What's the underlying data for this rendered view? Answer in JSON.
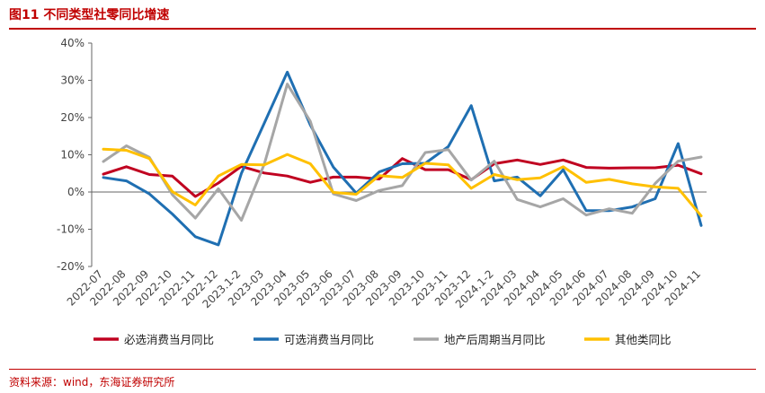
{
  "header": {
    "title": "图11  不同类型社零同比增速"
  },
  "footer": {
    "source": "资料来源：wind，东海证券研究所"
  },
  "chart_data": {
    "type": "line",
    "categories": [
      "2022-07",
      "2022-08",
      "2022-09",
      "2022-10",
      "2022-11",
      "2022-12",
      "2023.1-2",
      "2023-03",
      "2023-04",
      "2023-05",
      "2023-06",
      "2023-07",
      "2023-08",
      "2023-09",
      "2023-10",
      "2023-11",
      "2023-12",
      "2024.1-2",
      "2024-03",
      "2024-04",
      "2024-05",
      "2024-06",
      "2024-07",
      "2024-08",
      "2024-09",
      "2024-10",
      "2024-11"
    ],
    "yticks": [
      "40%",
      "30%",
      "20%",
      "10%",
      "0%",
      "-10%",
      "-20%"
    ],
    "ylim": [
      -20,
      40
    ],
    "grid": false,
    "legend_position": "bottom",
    "series": [
      {
        "name": "必选消费当月同比",
        "color": "#c00020",
        "values": [
          4.8,
          6.8,
          4.7,
          4.3,
          -1.2,
          2.4,
          6.9,
          5.1,
          4.3,
          2.6,
          4.0,
          4.0,
          3.5,
          9.0,
          6.0,
          6.0,
          3.3,
          7.6,
          8.6,
          7.4,
          8.6,
          6.6,
          6.4,
          6.5,
          6.5,
          7.2,
          4.9
        ]
      },
      {
        "name": "可选消费当月同比",
        "color": "#1f6fb2",
        "values": [
          3.9,
          3.0,
          -0.5,
          -5.9,
          -12.0,
          -14.2,
          5.0,
          18.5,
          32.2,
          18.0,
          6.7,
          -0.3,
          5.4,
          7.6,
          7.7,
          12.2,
          23.2,
          3.0,
          4.0,
          -1.0,
          6.0,
          -5.0,
          -5.0,
          -4.0,
          -1.8,
          13.0,
          -9.0
        ]
      },
      {
        "name": "地产后周期当月同比",
        "color": "#a6a6a6",
        "values": [
          8.2,
          12.4,
          9.3,
          -0.7,
          -7.0,
          0.9,
          -7.6,
          7.5,
          29.0,
          19.0,
          -0.5,
          -2.3,
          0.4,
          1.7,
          10.6,
          11.4,
          3.2,
          8.3,
          -2.0,
          -4.0,
          -1.8,
          -6.2,
          -4.5,
          -5.7,
          2.3,
          8.3,
          9.4
        ]
      },
      {
        "name": "其他类同比",
        "color": "#ffc000",
        "values": [
          11.5,
          11.2,
          9.0,
          0.1,
          -3.5,
          4.3,
          7.4,
          7.3,
          10.1,
          7.6,
          -0.1,
          -0.6,
          4.4,
          3.9,
          7.7,
          7.3,
          1.0,
          4.7,
          3.3,
          3.8,
          6.8,
          2.6,
          3.4,
          2.2,
          1.4,
          1.0,
          -6.4
        ]
      }
    ]
  }
}
